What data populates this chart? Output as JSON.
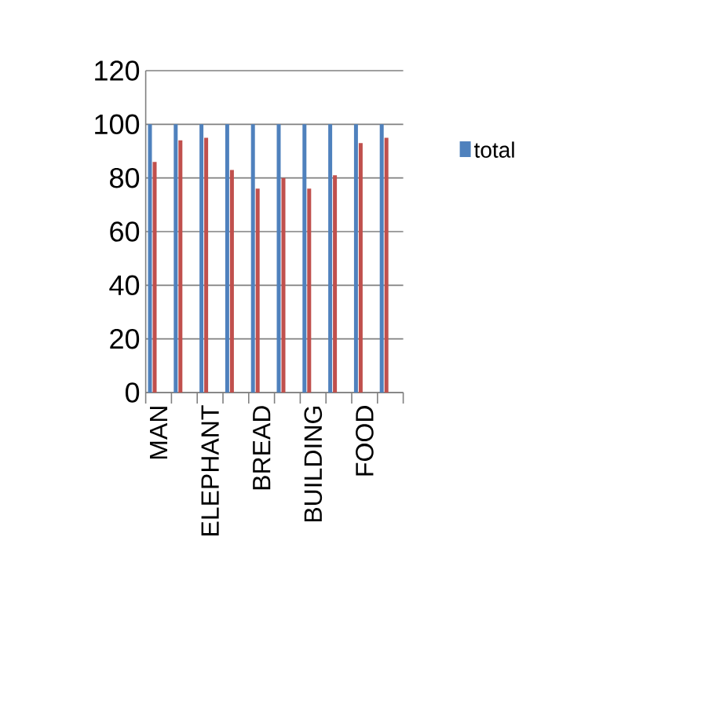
{
  "chart_data": {
    "type": "bar",
    "categories": [
      "MAN",
      null,
      "ELEPHANT",
      null,
      "BREAD",
      null,
      "BUILDING",
      null,
      "FOOD",
      null
    ],
    "series": [
      {
        "name": "total",
        "color": "#4f81bd",
        "values": [
          100,
          100,
          100,
          100,
          100,
          100,
          100,
          100,
          100,
          100
        ]
      },
      {
        "color": "#c0504d",
        "values": [
          86,
          94,
          95,
          83,
          76,
          80,
          76,
          81,
          93,
          95
        ]
      }
    ],
    "ylim": [
      0,
      120
    ],
    "yticks": [
      0,
      20,
      40,
      60,
      80,
      100,
      120
    ],
    "grid": "y",
    "legend": "right"
  }
}
